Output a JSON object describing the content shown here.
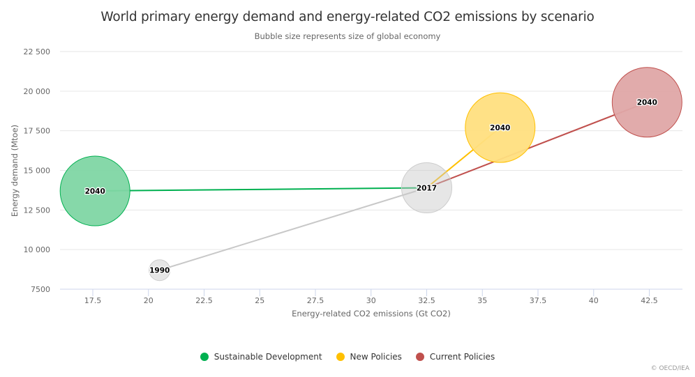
{
  "chart_data": {
    "type": "scatter",
    "subtype": "bubble",
    "title": "World primary energy demand and energy-related CO2 emissions by scenario",
    "subtitle": "Bubble size represents size of global economy",
    "xlabel": "Energy-related CO2 emissions (Gt CO2)",
    "ylabel": "Energy demand (Mtoe)",
    "xlim": [
      16,
      44
    ],
    "ylim": [
      7500,
      22500
    ],
    "x_ticks": [
      17.5,
      20,
      22.5,
      25,
      27.5,
      30,
      32.5,
      35,
      37.5,
      40,
      42.5
    ],
    "x_tick_labels": [
      "17.5",
      "20",
      "22.5",
      "25",
      "27.5",
      "30",
      "32.5",
      "35",
      "37.5",
      "40",
      "42.5"
    ],
    "y_ticks": [
      7500,
      10000,
      12500,
      15000,
      17500,
      20000,
      22500
    ],
    "y_tick_labels": [
      "7500",
      "10 000",
      "12 500",
      "15 000",
      "17 500",
      "20 000",
      "22 500"
    ],
    "grid": true,
    "legend_position": "bottom-center",
    "history": {
      "name": "Historical",
      "color": "#c8c8c8",
      "points": [
        {
          "label": "1990",
          "x": 20.5,
          "y": 8700,
          "size": 0.3
        },
        {
          "label": "2017",
          "x": 32.5,
          "y": 13900,
          "size": 0.72
        }
      ]
    },
    "series": [
      {
        "name": "Sustainable Development",
        "color": "#00b050",
        "fill": "#7fd6a4",
        "points": [
          {
            "label": "2017",
            "x": 32.5,
            "y": 13900
          },
          {
            "label": "2040",
            "x": 17.6,
            "y": 13700,
            "size": 1.0
          }
        ]
      },
      {
        "name": "New Policies",
        "color": "#ffc000",
        "fill": "#ffdf80",
        "points": [
          {
            "label": "2017",
            "x": 32.5,
            "y": 13900
          },
          {
            "label": "2040",
            "x": 35.8,
            "y": 17700,
            "size": 1.0
          }
        ]
      },
      {
        "name": "Current Policies",
        "color": "#c0504d",
        "fill": "#dfa7a6",
        "points": [
          {
            "label": "2017",
            "x": 32.5,
            "y": 13900
          },
          {
            "label": "2040",
            "x": 42.4,
            "y": 19300,
            "size": 1.0
          }
        ]
      }
    ]
  },
  "legend": [
    {
      "label": "Sustainable Development",
      "color": "#00b050"
    },
    {
      "label": "New Policies",
      "color": "#ffc000"
    },
    {
      "label": "Current Policies",
      "color": "#c0504d"
    }
  ],
  "credits": "© OECD/IEA"
}
